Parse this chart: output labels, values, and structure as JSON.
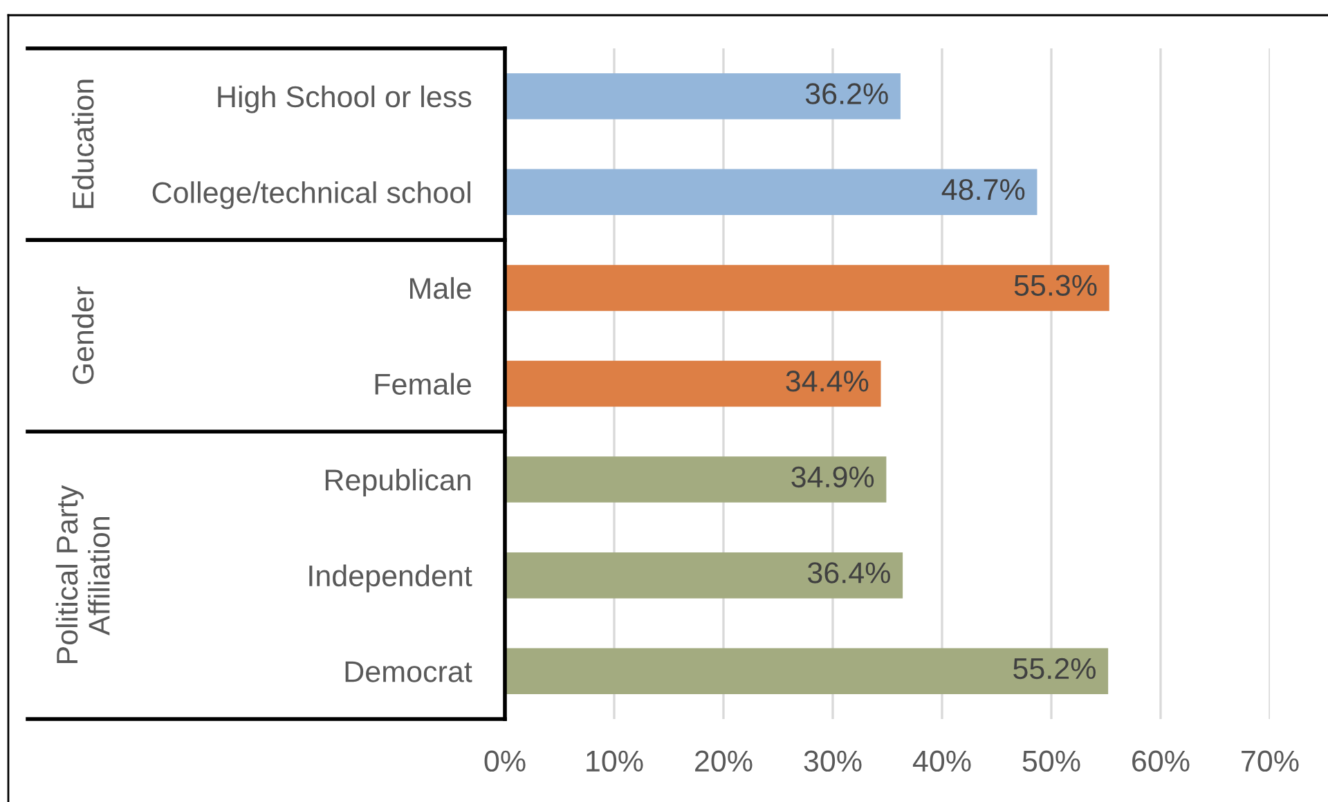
{
  "chart_data": {
    "type": "bar",
    "orientation": "horizontal",
    "categories": [
      "High School or less",
      "College/technical school",
      "Male",
      "Female",
      "Republican",
      "Independent",
      "Democrat"
    ],
    "values": [
      36.2,
      48.7,
      55.3,
      34.4,
      34.9,
      36.4,
      55.2
    ],
    "colors": [
      "#94b6da",
      "#94b6da",
      "#dd7f45",
      "#dd7f45",
      "#a3ab80",
      "#a3ab80",
      "#a3ab80"
    ],
    "value_labels": [
      "36.2%",
      "48.7%",
      "55.3%",
      "34.4%",
      "34.9%",
      "36.4%",
      "55.2%"
    ],
    "annotations": [
      "Education",
      "Gender",
      "Political Party\nAffiliation"
    ],
    "xlim": [
      0,
      70
    ],
    "xticks": [
      {
        "value": 0,
        "label": "0%"
      },
      {
        "value": 10,
        "label": "10%"
      },
      {
        "value": 20,
        "label": "20%"
      },
      {
        "value": 30,
        "label": "30%"
      },
      {
        "value": 40,
        "label": "40%"
      },
      {
        "value": 50,
        "label": "50%"
      },
      {
        "value": 60,
        "label": "60%"
      },
      {
        "value": 70,
        "label": "70%"
      }
    ],
    "grid": "x"
  }
}
